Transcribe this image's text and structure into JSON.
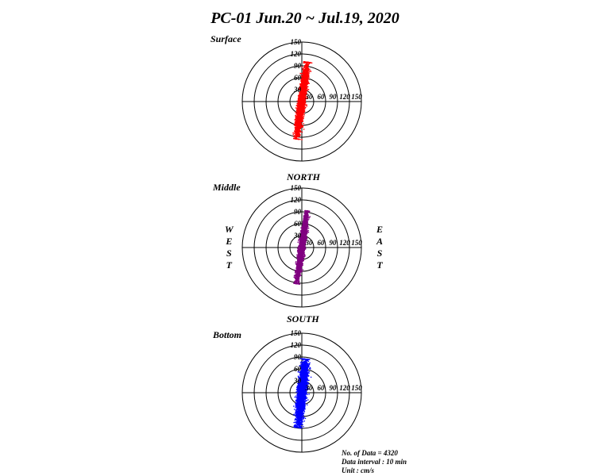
{
  "title": "PC-01 Jun.20 ~ Jul.19, 2020",
  "compass": {
    "north": "NORTH",
    "south": "SOUTH",
    "west": "WEST",
    "east": "EAST"
  },
  "info": {
    "count": "No. of Data = 4320",
    "interval": "Data interval : 10 min",
    "unit": "Unit : cm/s"
  },
  "chart_data": [
    {
      "type": "scatter",
      "subtype": "polar current scatter",
      "label": "Surface",
      "color": "#ff0000",
      "radial_range": [
        0,
        150
      ],
      "rings": [
        30,
        60,
        90,
        120,
        150
      ],
      "north_tick_labels": [
        "150",
        "120",
        "90",
        "60",
        "30"
      ],
      "east_tick_labels": [
        "30",
        "60",
        "90",
        "120",
        "150"
      ],
      "n_points": 4320,
      "principal_axis_deg": 8,
      "north_extent": 100,
      "south_extent": 95,
      "spread": 10,
      "seed": 11
    },
    {
      "type": "scatter",
      "subtype": "polar current scatter",
      "label": "Middle",
      "color": "#800080",
      "radial_range": [
        0,
        150
      ],
      "rings": [
        30,
        60,
        90,
        120,
        150
      ],
      "north_tick_labels": [
        "150",
        "120",
        "90",
        "60",
        "30"
      ],
      "east_tick_labels": [
        "30",
        "60",
        "90",
        "120",
        "150"
      ],
      "n_points": 4320,
      "principal_axis_deg": 8,
      "north_extent": 93,
      "south_extent": 92,
      "spread": 8,
      "seed": 23
    },
    {
      "type": "scatter",
      "subtype": "polar current scatter",
      "label": "Bottom",
      "color": "#0000ff",
      "radial_range": [
        0,
        150
      ],
      "rings": [
        30,
        60,
        90,
        120,
        150
      ],
      "north_tick_labels": [
        "150",
        "120",
        "90",
        "60",
        "30"
      ],
      "east_tick_labels": [
        "30",
        "60",
        "90",
        "120",
        "150"
      ],
      "n_points": 4320,
      "principal_axis_deg": 6,
      "north_extent": 85,
      "south_extent": 88,
      "spread": 12,
      "seed": 37
    }
  ]
}
